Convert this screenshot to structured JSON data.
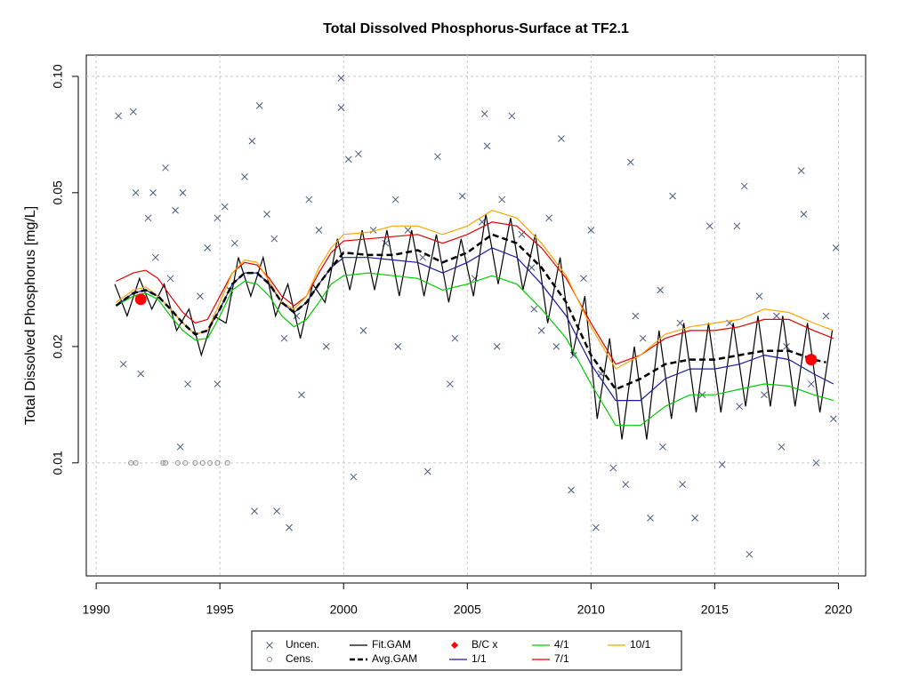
{
  "chart_data": {
    "type": "line",
    "title": "Total Dissolved Phosphorus-Surface at TF2.1",
    "ylabel": "Total Dissolved Phosphorus [mg/L]",
    "log_y": true,
    "grid": true,
    "legend": "bottom",
    "xlim": [
      1989.6,
      2021.1
    ],
    "xticks": [
      1990,
      1995,
      2000,
      2005,
      2010,
      2015,
      2020
    ],
    "ylim": [
      0.0051,
      0.1135
    ],
    "yticks": [
      {
        "value": 0.1,
        "label": "0.10"
      },
      0.05,
      0.02,
      0.01
    ],
    "ygrid": [
      0.1,
      0.01
    ],
    "series": [
      {
        "name": "Uncen.",
        "style": "x",
        "color": "#4a5a80",
        "x": [
          1990.9,
          1991.5,
          1991.6,
          1992.1,
          1992.3,
          1992.8,
          1993.2,
          1993.5,
          1993.4,
          1993.7,
          1994.2,
          1994.5,
          1994.9,
          1995.2,
          1995.6,
          1996.0,
          1996.3,
          1996.4,
          1996.6,
          1996.9,
          1997.3,
          1997.8,
          1997.6,
          1998.1,
          1998.3,
          1998.6,
          1999.0,
          1999.3,
          1999.9,
          1999.9,
          2000.2,
          2000.6,
          2000.4,
          2000.8,
          2001.2,
          2001.7,
          2002.1,
          2002.6,
          2003.2,
          2003.4,
          2003.8,
          2004.3,
          2004.5,
          2004.8,
          2005.3,
          2005.6,
          2005.7,
          2005.8,
          2006.4,
          2006.8,
          2007.2,
          2007.6,
          2007.7,
          2008.0,
          2008.3,
          2008.6,
          2008.8,
          2009.2,
          2009.3,
          2009.7,
          2010.2,
          2010.4,
          2010.9,
          2011.4,
          2011.6,
          2011.8,
          2012.1,
          2012.4,
          2012.9,
          2013.3,
          2013.6,
          2013.7,
          2014.2,
          2014.5,
          2014.8,
          2015.3,
          2015.6,
          2015.9,
          2016.2,
          2016.4,
          2016.8,
          2017.0,
          2017.7,
          2017.9,
          2018.5,
          2018.6,
          2018.9,
          2019.1,
          2019.5,
          2019.8,
          2019.9,
          1991.1,
          1991.8,
          1992.4,
          1993.0,
          1994.9,
          1995.4,
          1997.2,
          2002.2,
          2006.2,
          2010.0,
          2012.8,
          2016.0,
          2017.5
        ],
        "values": [
          0.079,
          0.081,
          0.05,
          0.043,
          0.05,
          0.058,
          0.045,
          0.05,
          0.011,
          0.016,
          0.027,
          0.036,
          0.043,
          0.046,
          0.037,
          0.055,
          0.068,
          0.0075,
          0.084,
          0.044,
          0.0075,
          0.0068,
          0.021,
          0.024,
          0.015,
          0.048,
          0.04,
          0.02,
          0.099,
          0.083,
          0.061,
          0.063,
          0.0092,
          0.022,
          0.04,
          0.037,
          0.048,
          0.04,
          0.034,
          0.0095,
          0.062,
          0.016,
          0.021,
          0.049,
          0.03,
          0.042,
          0.08,
          0.066,
          0.048,
          0.079,
          0.039,
          0.032,
          0.025,
          0.022,
          0.043,
          0.02,
          0.069,
          0.0085,
          0.019,
          0.03,
          0.0068,
          0.017,
          0.0097,
          0.0088,
          0.06,
          0.024,
          0.021,
          0.0072,
          0.011,
          0.049,
          0.023,
          0.0088,
          0.0072,
          0.015,
          0.041,
          0.0099,
          0.023,
          0.041,
          0.052,
          0.0058,
          0.027,
          0.015,
          0.011,
          0.02,
          0.057,
          0.044,
          0.016,
          0.01,
          0.024,
          0.013,
          0.036,
          0.018,
          0.017,
          0.034,
          0.03,
          0.016,
          0.028,
          0.038,
          0.02,
          0.02,
          0.04,
          0.028,
          0.014,
          0.024
        ]
      },
      {
        "name": "Cens.",
        "style": "o",
        "color": "#909090",
        "x": [
          1991.4,
          1991.6,
          1992.7,
          1992.8,
          1993.3,
          1993.6,
          1994.0,
          1994.3,
          1994.6,
          1994.9,
          1995.3
        ],
        "values": [
          0.01,
          0.01,
          0.01,
          0.01,
          0.01,
          0.01,
          0.01,
          0.01,
          0.01,
          0.01,
          0.01
        ]
      },
      {
        "name": "Fit.GAM",
        "style": "line",
        "color": "#000000",
        "x": [
          1990.75,
          1991.25,
          1991.75,
          1992.25,
          1992.75,
          1993.25,
          1993.75,
          1994.25,
          1994.75,
          1995.25,
          1995.75,
          1996.25,
          1996.75,
          1997.25,
          1997.75,
          1998.25,
          1998.75,
          1999.25,
          1999.75,
          2000.25,
          2000.75,
          2001.25,
          2001.75,
          2002.25,
          2002.75,
          2003.25,
          2003.75,
          2004.25,
          2004.75,
          2005.25,
          2005.75,
          2006.25,
          2006.75,
          2007.25,
          2007.75,
          2008.25,
          2008.75,
          2009.25,
          2009.75,
          2010.25,
          2010.75,
          2011.25,
          2011.75,
          2012.25,
          2012.75,
          2013.25,
          2013.75,
          2014.25,
          2014.75,
          2015.25,
          2015.75,
          2016.25,
          2016.75,
          2017.25,
          2017.75,
          2018.25,
          2018.75,
          2019.25,
          2019.75
        ],
        "values": [
          0.029,
          0.024,
          0.03,
          0.025,
          0.029,
          0.022,
          0.025,
          0.019,
          0.024,
          0.023,
          0.034,
          0.027,
          0.034,
          0.024,
          0.029,
          0.021,
          0.029,
          0.026,
          0.038,
          0.028,
          0.04,
          0.028,
          0.04,
          0.027,
          0.04,
          0.027,
          0.039,
          0.026,
          0.038,
          0.027,
          0.044,
          0.029,
          0.043,
          0.028,
          0.039,
          0.023,
          0.034,
          0.019,
          0.027,
          0.013,
          0.021,
          0.0115,
          0.02,
          0.0115,
          0.022,
          0.013,
          0.023,
          0.0135,
          0.023,
          0.0135,
          0.023,
          0.014,
          0.024,
          0.014,
          0.024,
          0.014,
          0.023,
          0.0135,
          0.022
        ]
      },
      {
        "name": "Avg.GAM",
        "style": "dashed",
        "color": "#000000",
        "x": [
          1990.8,
          1991.5,
          1992,
          1992.5,
          1993,
          1993.5,
          1994,
          1994.5,
          1995,
          1995.5,
          1996,
          1996.5,
          1997,
          1997.5,
          1998,
          1998.5,
          1999,
          1999.5,
          2000,
          2001,
          2002,
          2003,
          2004,
          2005,
          2006,
          2007,
          2008,
          2009,
          2010,
          2011,
          2012,
          2013,
          2014,
          2015,
          2016,
          2017,
          2018,
          2019,
          2019.5
        ],
        "values": [
          0.0255,
          0.0275,
          0.028,
          0.027,
          0.025,
          0.023,
          0.0215,
          0.022,
          0.025,
          0.029,
          0.031,
          0.031,
          0.029,
          0.026,
          0.0245,
          0.026,
          0.029,
          0.032,
          0.035,
          0.0345,
          0.0345,
          0.0355,
          0.033,
          0.035,
          0.039,
          0.037,
          0.032,
          0.026,
          0.019,
          0.0155,
          0.0165,
          0.018,
          0.0185,
          0.0185,
          0.019,
          0.0195,
          0.0195,
          0.0185,
          0.0182
        ]
      },
      {
        "name": "B/C x",
        "style": "dot",
        "color": "#ff0000",
        "x": [
          1991.8,
          2018.9
        ],
        "values": [
          0.0265,
          0.0185
        ]
      },
      {
        "name": "1/1",
        "style": "line",
        "color": "#1a1aa0",
        "x": [
          1990.8,
          1991.5,
          1992,
          1992.5,
          1993,
          1993.5,
          1994,
          1994.5,
          1995,
          1995.5,
          1996,
          1996.5,
          1997,
          1997.5,
          1998,
          1998.5,
          1999,
          1999.5,
          2000,
          2001,
          2002,
          2003,
          2004,
          2005,
          2006,
          2007,
          2008,
          2009,
          2010,
          2011,
          2012,
          2013,
          2014,
          2015,
          2016,
          2017,
          2018,
          2019,
          2019.8
        ],
        "values": [
          0.0255,
          0.0275,
          0.028,
          0.027,
          0.025,
          0.023,
          0.0215,
          0.022,
          0.025,
          0.029,
          0.031,
          0.031,
          0.029,
          0.026,
          0.0245,
          0.026,
          0.029,
          0.032,
          0.034,
          0.034,
          0.0335,
          0.033,
          0.031,
          0.033,
          0.036,
          0.034,
          0.029,
          0.024,
          0.018,
          0.0145,
          0.0145,
          0.0165,
          0.0175,
          0.0175,
          0.018,
          0.019,
          0.0185,
          0.017,
          0.016
        ]
      },
      {
        "name": "4/1",
        "style": "line",
        "color": "#00cc00",
        "x": [
          1990.8,
          1991.5,
          1992,
          1992.5,
          1993,
          1993.5,
          1994,
          1994.5,
          1995,
          1995.5,
          1996,
          1996.5,
          1997,
          1997.5,
          1998,
          1998.5,
          1999,
          1999.5,
          2000,
          2001,
          2002,
          2003,
          2004,
          2005,
          2006,
          2007,
          2008,
          2009,
          2010,
          2011,
          2012,
          2013,
          2014,
          2015,
          2016,
          2017,
          2018,
          2019,
          2019.8
        ],
        "values": [
          0.0255,
          0.027,
          0.0275,
          0.0265,
          0.024,
          0.022,
          0.0208,
          0.021,
          0.024,
          0.028,
          0.0295,
          0.029,
          0.027,
          0.024,
          0.0225,
          0.0235,
          0.026,
          0.029,
          0.0305,
          0.031,
          0.0305,
          0.03,
          0.028,
          0.029,
          0.0305,
          0.029,
          0.025,
          0.021,
          0.016,
          0.0125,
          0.0125,
          0.014,
          0.015,
          0.015,
          0.0155,
          0.016,
          0.0158,
          0.015,
          0.0145
        ]
      },
      {
        "name": "7/1",
        "style": "line",
        "color": "#e00000",
        "x": [
          1990.8,
          1991.5,
          1992,
          1992.5,
          1993,
          1993.5,
          1994,
          1994.5,
          1995,
          1995.5,
          1996,
          1996.5,
          1997,
          1997.5,
          1998,
          1998.5,
          1999,
          1999.5,
          2000,
          2001,
          2002,
          2003,
          2004,
          2005,
          2006,
          2007,
          2008,
          2009,
          2010,
          2011,
          2012,
          2013,
          2014,
          2015,
          2016,
          2017,
          2018,
          2019,
          2019.8
        ],
        "values": [
          0.0295,
          0.031,
          0.0315,
          0.03,
          0.027,
          0.0245,
          0.023,
          0.0235,
          0.027,
          0.031,
          0.033,
          0.0325,
          0.03,
          0.027,
          0.0255,
          0.027,
          0.031,
          0.035,
          0.0375,
          0.038,
          0.0385,
          0.039,
          0.037,
          0.039,
          0.042,
          0.041,
          0.036,
          0.03,
          0.023,
          0.018,
          0.019,
          0.021,
          0.022,
          0.022,
          0.0225,
          0.0235,
          0.0235,
          0.022,
          0.021
        ]
      },
      {
        "name": "10/1",
        "style": "line",
        "color": "#ffa500",
        "x": [
          1990.8,
          1991.5,
          1992,
          1992.5,
          1993,
          1993.5,
          1994,
          1994.5,
          1995,
          1995.5,
          1996,
          1996.5,
          1997,
          1997.5,
          1998,
          1998.5,
          1999,
          1999.5,
          2000,
          2001,
          2002,
          2003,
          2004,
          2005,
          2006,
          2007,
          2008,
          2009,
          2010,
          2011,
          2012,
          2013,
          2014,
          2015,
          2016,
          2017,
          2018,
          2019,
          2019.8
        ],
        "values": [
          0.026,
          0.028,
          0.0285,
          0.027,
          0.025,
          0.023,
          0.0215,
          0.022,
          0.026,
          0.031,
          0.0335,
          0.033,
          0.0295,
          0.026,
          0.025,
          0.027,
          0.032,
          0.036,
          0.039,
          0.0395,
          0.041,
          0.041,
          0.039,
          0.041,
          0.045,
          0.043,
          0.037,
          0.0305,
          0.0225,
          0.0175,
          0.019,
          0.0215,
          0.0225,
          0.023,
          0.0235,
          0.025,
          0.0245,
          0.023,
          0.022
        ]
      }
    ]
  }
}
